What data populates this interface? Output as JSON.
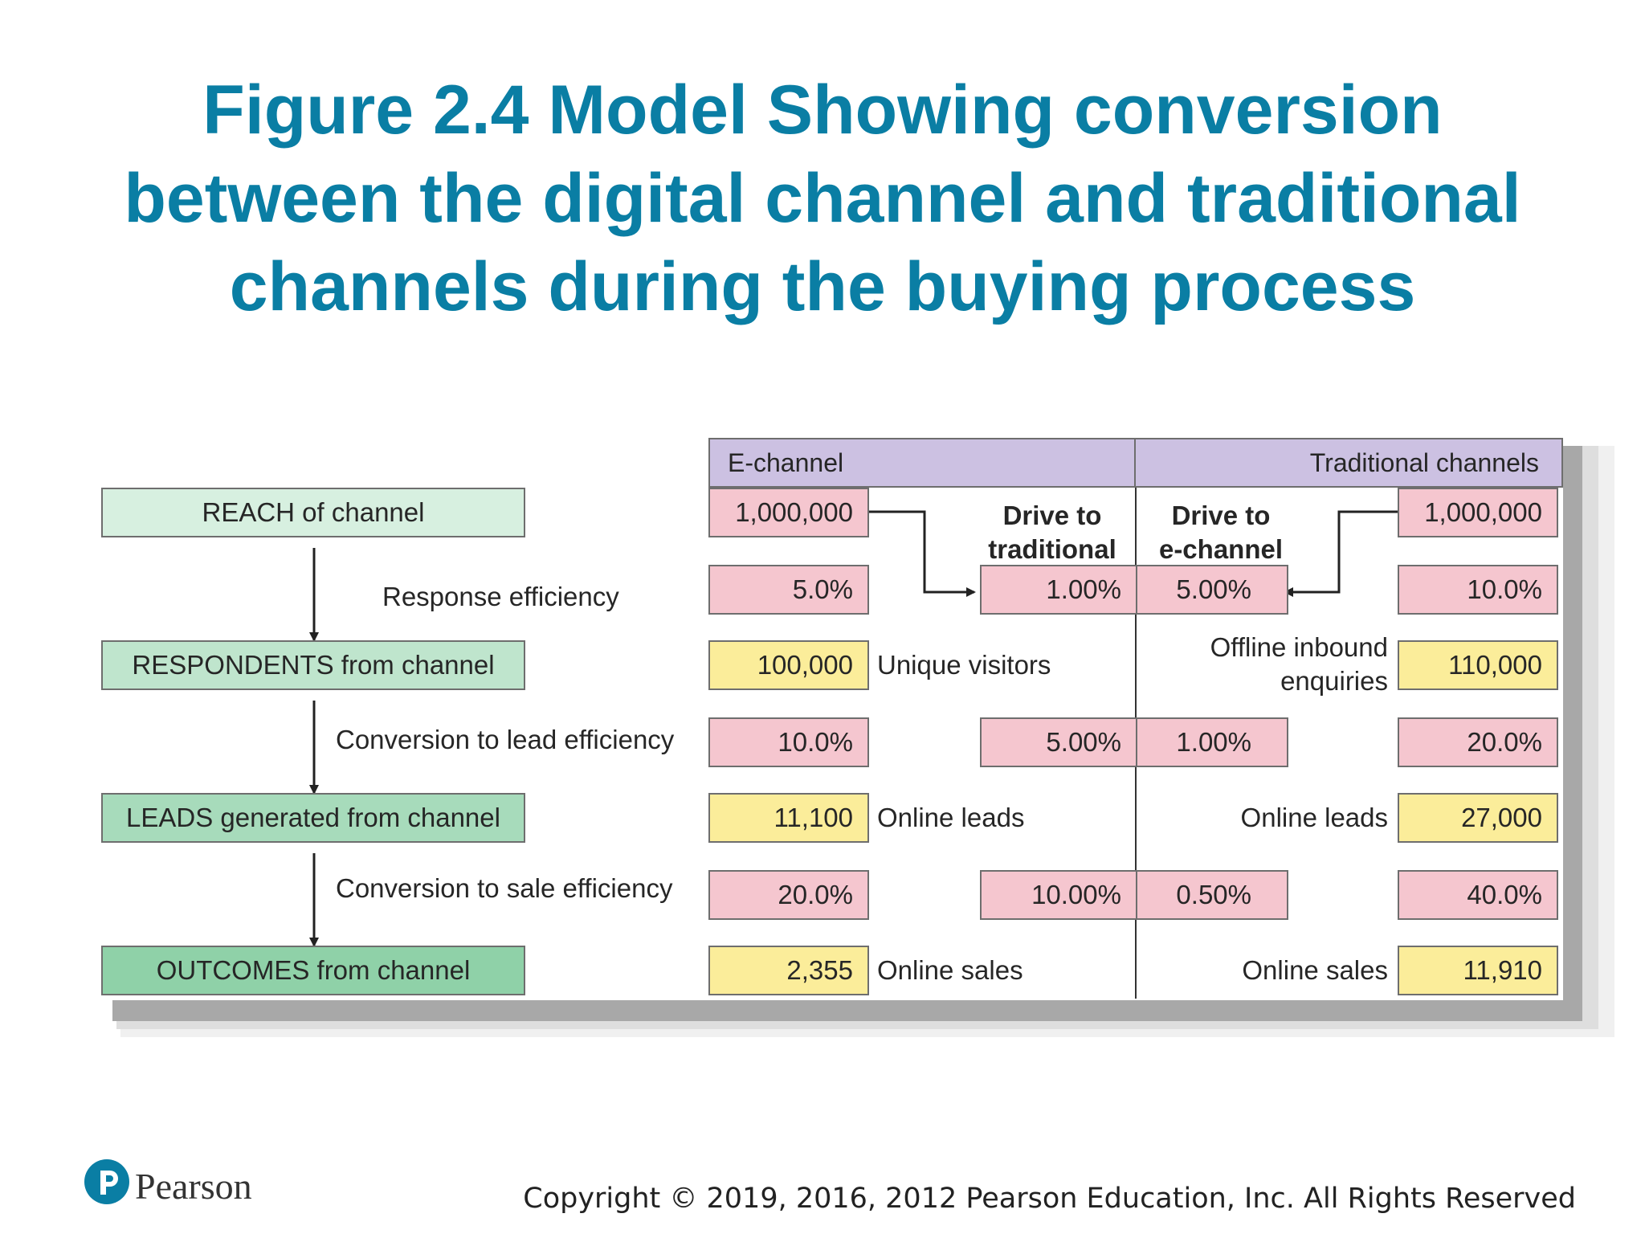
{
  "title": {
    "line1": "Figure 2.4 Model Showing conversion",
    "line2": "between the digital channel and traditional",
    "line3": "channels during the buying process"
  },
  "figure": {
    "headers": {
      "e_channel": "E-channel",
      "traditional": "Traditional channels"
    },
    "stages": [
      "REACH of channel",
      "RESPONDENTS from channel",
      "LEADS generated from channel",
      "OUTCOMES from channel"
    ],
    "efficiency_labels": [
      "Response efficiency",
      "Conversion to lead efficiency",
      "Conversion to sale efficiency"
    ],
    "drive_to_traditional": {
      "line1": "Drive to",
      "line2": "traditional"
    },
    "drive_to_echannel": {
      "line1": "Drive to",
      "line2": "e-channel"
    },
    "e_channel": {
      "reach": "1,000,000",
      "response_efficiency": "5.0%",
      "respondents": "100,000",
      "respondents_label": "Unique visitors",
      "lead_efficiency": "10.0%",
      "leads": "11,100",
      "leads_label": "Online leads",
      "sale_efficiency": "20.0%",
      "outcomes": "2,355",
      "outcomes_label": "Online sales"
    },
    "cross_to_traditional": [
      "1.00%",
      "5.00%",
      "10.00%"
    ],
    "cross_to_echannel": [
      "5.00%",
      "1.00%",
      "0.50%"
    ],
    "traditional": {
      "reach": "1,000,000",
      "response_efficiency": "10.0%",
      "respondents": "110,000",
      "respondents_label_line1": "Offline inbound",
      "respondents_label_line2": "enquiries",
      "lead_efficiency": "20.0%",
      "leads": "27,000",
      "leads_label": "Online leads",
      "sale_efficiency": "40.0%",
      "outcomes": "11,910",
      "outcomes_label": "Online sales"
    },
    "colors": {
      "pink": "#f5c6cf",
      "yellow": "#fbed9a",
      "header": "#ccc1e2",
      "stage_greens": [
        "#d7f0e0",
        "#bfe5cd",
        "#a7dbbb",
        "#8fd1a8"
      ]
    }
  },
  "footer": {
    "copyright": "Copyright © 2019, 2016, 2012 Pearson Education, Inc. All Rights Reserved",
    "logo_text": "Pearson"
  },
  "title_color": "#0a7ea4"
}
